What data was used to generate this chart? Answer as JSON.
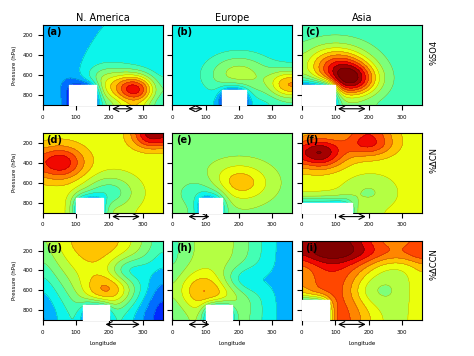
{
  "title_col": [
    "N. America",
    "Europe",
    "Asia"
  ],
  "row_labels": [
    "%SO4",
    "%ΔCN",
    "%ΔCCN"
  ],
  "panel_labels": [
    [
      "(a)",
      "(b)",
      "(c)"
    ],
    [
      "(d)",
      "(e)",
      "(f)"
    ],
    [
      "(g)",
      "(h)",
      "(i)"
    ]
  ],
  "x_ticks": [
    0,
    100,
    200,
    300
  ],
  "x_label": "Longitude",
  "y_ticks": [
    200,
    400,
    600,
    800
  ],
  "y_label": "Pressure (hPa)",
  "figsize": [
    4.74,
    3.56
  ],
  "dpi": 100
}
